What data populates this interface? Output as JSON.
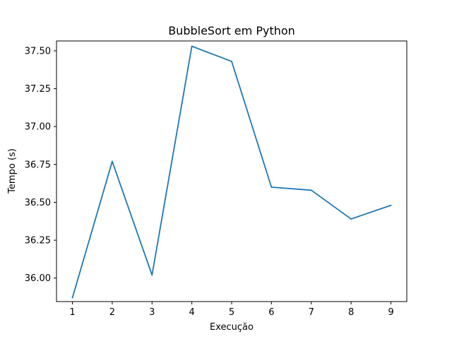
{
  "chart_data": {
    "type": "line",
    "title": "BubbleSort em Python",
    "xlabel": "Execução",
    "ylabel": "Tempo (s)",
    "x": [
      1,
      2,
      3,
      4,
      5,
      6,
      7,
      8,
      9
    ],
    "xticks": [
      "1",
      "2",
      "3",
      "4",
      "5",
      "6",
      "7",
      "8",
      "9"
    ],
    "yticks": [
      "36.00",
      "36.25",
      "36.50",
      "36.75",
      "37.00",
      "37.25",
      "37.50"
    ],
    "ytick_values": [
      36.0,
      36.25,
      36.5,
      36.75,
      37.0,
      37.25,
      37.5
    ],
    "xlim": [
      0.6,
      9.4
    ],
    "ylim": [
      35.845,
      37.565
    ],
    "grid": false,
    "series": [
      {
        "color": "#1f77b4",
        "values": [
          35.87,
          36.77,
          36.02,
          37.53,
          37.43,
          36.6,
          36.58,
          36.39,
          36.48
        ]
      }
    ]
  }
}
